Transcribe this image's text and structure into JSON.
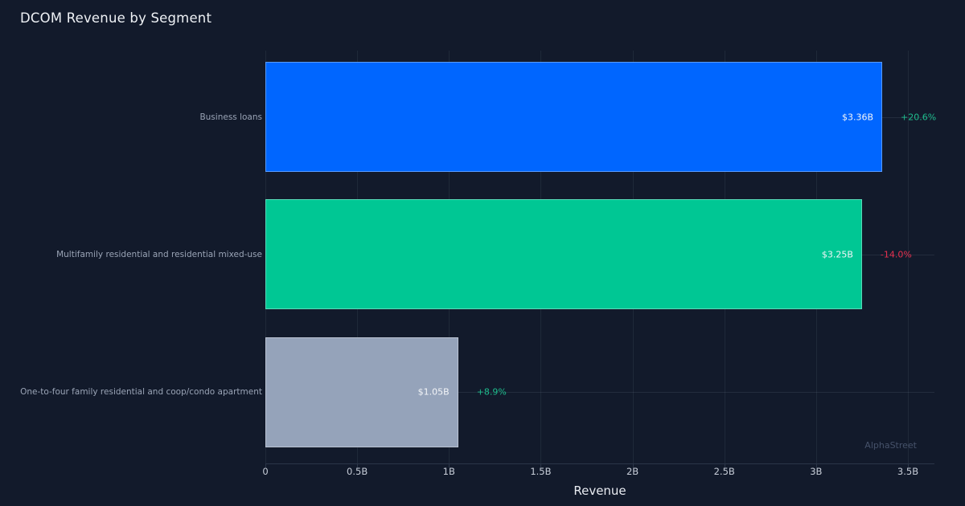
{
  "page": {
    "watermark": "AlphaStreet"
  },
  "colors": {
    "background": "#121a2b",
    "gridline": "#1f2939",
    "axis_line": "#2b3548",
    "bar_border": "rgba(255,255,255,0.35)",
    "value_label": "#f3f5f8",
    "category_label": "#9aa4b6",
    "tick_label": "#c7cdd8",
    "positive_change": "#1ebd8d",
    "negative_change": "#e8304f"
  },
  "chart_data": {
    "type": "bar",
    "orientation": "horizontal",
    "title": "DCOM Revenue by Segment",
    "xlabel": "Revenue",
    "categories": [
      "Business loans",
      "Multifamily residential and residential mixed-use",
      "One-to-four family residential and coop/condo apartment"
    ],
    "values": [
      3.36,
      3.25,
      1.05
    ],
    "value_unit": "billions USD",
    "value_labels": [
      "$3.36B",
      "$3.25B",
      "$1.05B"
    ],
    "change_labels": [
      "+20.6%",
      "-14.0%",
      "+8.9%"
    ],
    "change_colors": [
      "#1ebd8d",
      "#e8304f",
      "#1ebd8d"
    ],
    "bar_colors": [
      "#0066ff",
      "#00c794",
      "#95a3ba"
    ],
    "xlim": [
      0,
      3.5
    ],
    "xticks": [
      0,
      0.5,
      1,
      1.5,
      2,
      2.5,
      3,
      3.5
    ],
    "xtick_labels": [
      "0",
      "0.5B",
      "1B",
      "1.5B",
      "2B",
      "2.5B",
      "3B",
      "3.5B"
    ],
    "grid": "vertical",
    "legend": "none"
  }
}
